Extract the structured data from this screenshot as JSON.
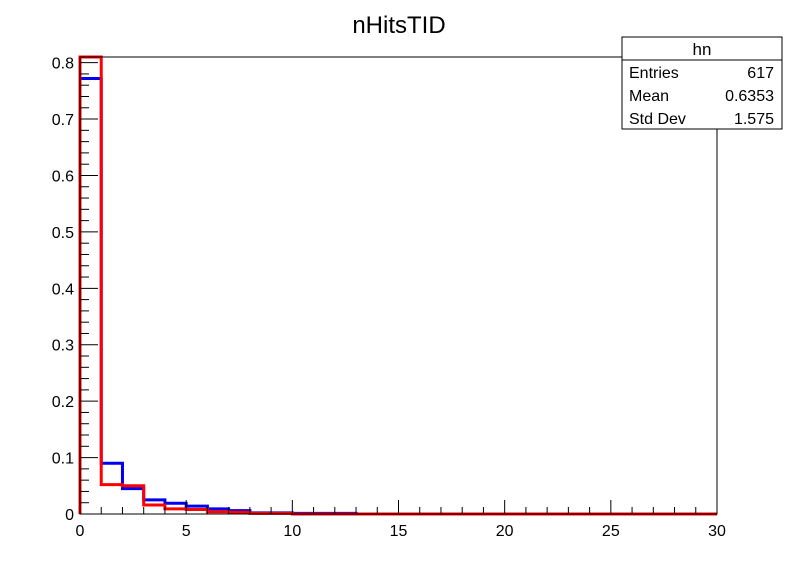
{
  "chart_data": {
    "type": "histogram",
    "title": "nHitsTID",
    "xlabel": "",
    "ylabel": "",
    "xlim": [
      0,
      30
    ],
    "ylim": [
      0,
      0.81
    ],
    "x_ticks": [
      "0",
      "5",
      "10",
      "15",
      "20",
      "25",
      "30"
    ],
    "y_ticks": [
      "0",
      "0.1",
      "0.2",
      "0.3",
      "0.4",
      "0.5",
      "0.6",
      "0.7",
      "0.8"
    ],
    "bin_width": 1,
    "series": [
      {
        "color": "#0000ee",
        "values": [
          0.772,
          0.09,
          0.045,
          0.025,
          0.019,
          0.014,
          0.009,
          0.006,
          0.002,
          0.002,
          0.001,
          0.001,
          0.001,
          0,
          0,
          0,
          0,
          0,
          0,
          0,
          0,
          0,
          0,
          0,
          0,
          0,
          0,
          0,
          0,
          0
        ]
      },
      {
        "color": "#ff0000",
        "values": [
          0.81,
          0.052,
          0.05,
          0.016,
          0.009,
          0.008,
          0.004,
          0.003,
          0.001,
          0.001,
          0,
          0,
          0,
          0,
          0,
          0,
          0,
          0,
          0,
          0,
          0,
          0,
          0,
          0,
          0,
          0,
          0,
          0,
          0,
          0
        ]
      }
    ],
    "stats_box": {
      "title": "hn",
      "rows": [
        {
          "label": "Entries",
          "value": "617"
        },
        {
          "label": "Mean",
          "value": "0.6353"
        },
        {
          "label": "Std Dev",
          "value": "1.575"
        }
      ]
    }
  }
}
